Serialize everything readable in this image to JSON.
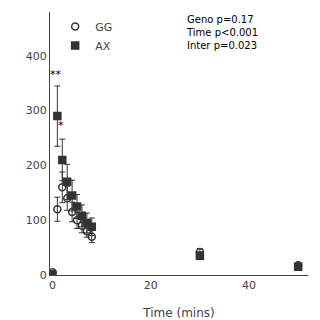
{
  "chart_data": {
    "type": "scatter",
    "xlabel": "Time (mins)",
    "x": [
      0,
      1,
      2,
      3,
      4,
      5,
      6,
      7,
      8,
      30,
      50
    ],
    "series": [
      {
        "name": "GG",
        "color": "#333333",
        "marker": "circle-open",
        "values": [
          5,
          120,
          160,
          140,
          115,
          100,
          90,
          80,
          70,
          42,
          18
        ],
        "errors": [
          3,
          22,
          28,
          22,
          18,
          15,
          13,
          11,
          11,
          6,
          4
        ]
      },
      {
        "name": "AX",
        "color": "#333333",
        "marker": "square",
        "values": [
          0,
          290,
          210,
          170,
          145,
          125,
          108,
          95,
          88,
          35,
          15
        ],
        "errors": [
          0,
          55,
          38,
          32,
          28,
          22,
          20,
          18,
          16,
          7,
          3
        ]
      }
    ],
    "xlim": [
      -0.5,
      52
    ],
    "ylim": [
      0,
      480
    ],
    "xticks": [
      0,
      20,
      40
    ],
    "yticks": [
      0,
      100,
      200,
      300,
      400
    ],
    "annotations": [
      {
        "x": 0.8,
        "y": 350,
        "text": "**"
      },
      {
        "x": 1.8,
        "y": 258,
        "text": "*"
      },
      {
        "text": "Geno p=0.17\nTime p<0.001\nInter p=0.023"
      }
    ],
    "legend": "upper left",
    "grid": false
  }
}
